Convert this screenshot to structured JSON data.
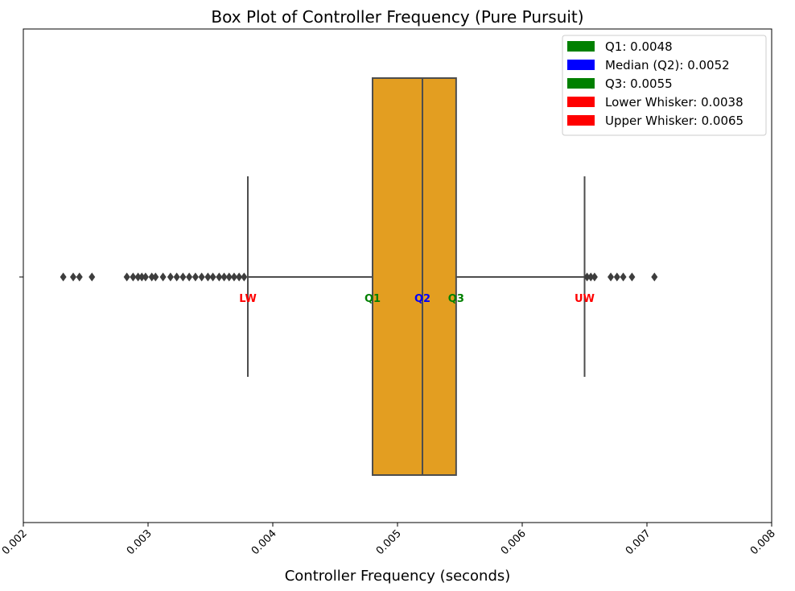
{
  "chart_data": {
    "type": "box",
    "title": "Box Plot of Controller Frequency (Pure Pursuit)",
    "xlabel": "Controller Frequency (seconds)",
    "ylabel": "",
    "xlim": [
      0.002,
      0.008
    ],
    "xticks": [
      "0.002",
      "0.003",
      "0.004",
      "0.005",
      "0.006",
      "0.007",
      "0.008"
    ],
    "tick_values": [
      0.002,
      0.003,
      0.004,
      0.005,
      0.006,
      0.007,
      0.008
    ],
    "box": {
      "lower_whisker": 0.0038,
      "q1": 0.0048,
      "median": 0.0052,
      "q3": 0.00547,
      "upper_whisker": 0.0065,
      "color": "#E39E21"
    },
    "outliers": [
      0.00232,
      0.0024,
      0.00245,
      0.00255,
      0.00283,
      0.00288,
      0.00292,
      0.00295,
      0.00298,
      0.00303,
      0.00306,
      0.00312,
      0.00318,
      0.00323,
      0.00328,
      0.00333,
      0.00338,
      0.00343,
      0.00348,
      0.00352,
      0.00357,
      0.00361,
      0.00365,
      0.00369,
      0.00373,
      0.00377,
      0.00652,
      0.00655,
      0.00658,
      0.00671,
      0.00676,
      0.00681,
      0.00688,
      0.00706
    ],
    "markers": [
      {
        "label": "LW",
        "value": 0.0038,
        "color": "#FF0000"
      },
      {
        "label": "Q1",
        "value": 0.0048,
        "color": "#008000"
      },
      {
        "label": "Q2",
        "value": 0.0052,
        "color": "#0000FF"
      },
      {
        "label": "Q3",
        "value": 0.00547,
        "color": "#008000"
      },
      {
        "label": "UW",
        "value": 0.0065,
        "color": "#FF0000"
      }
    ],
    "legend": {
      "position": "top-right",
      "entries": [
        {
          "label": "Q1: 0.0048",
          "color": "#008000"
        },
        {
          "label": "Median (Q2): 0.0052",
          "color": "#0000FF"
        },
        {
          "label": "Q3: 0.0055",
          "color": "#008000"
        },
        {
          "label": "Lower Whisker: 0.0038",
          "color": "#FF0000"
        },
        {
          "label": "Upper Whisker: 0.0065",
          "color": "#FF0000"
        }
      ]
    }
  }
}
